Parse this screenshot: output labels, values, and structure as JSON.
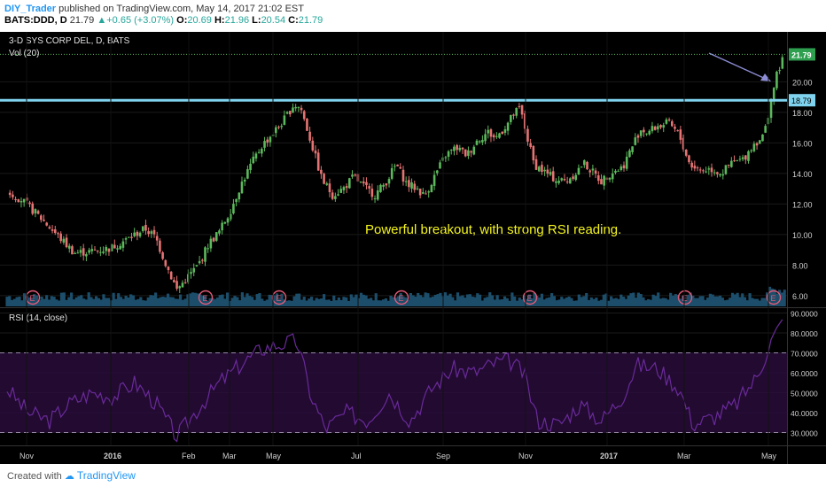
{
  "header": {
    "author": "DIY_Trader",
    "published_text": "published on TradingView.com, May 14, 2017 21:02 EST",
    "symbol": "BATS:DDD, D",
    "last": "21.79",
    "change": "+0.65 (+3.07%)",
    "open_label": "O:",
    "open": "20.69",
    "high_label": "H:",
    "high": "21.96",
    "low_label": "L:",
    "low": "20.54",
    "close_label": "C:",
    "close": "21.79"
  },
  "chart_data": [
    {
      "type": "candlestick",
      "title": "3-D SYS CORP DEL, D, BATS",
      "volume_label": "Vol (20)",
      "annotation": "Powerful breakout, with strong RSI reading.",
      "ylim": [
        5.3,
        22.8
      ],
      "y_ticks": [
        "6.00",
        "8.00",
        "10.00",
        "12.00",
        "14.00",
        "16.00",
        "18.00",
        "20.00"
      ],
      "horizontal_line": 18.79,
      "horizontal_line_label": "18.79",
      "last_price_label": "21.79",
      "x_ticks": [
        "Nov",
        "2016",
        "Feb",
        "Mar",
        "May",
        "Jul",
        "Sep",
        "Nov",
        "2017",
        "Mar",
        "May"
      ],
      "earnings_marker": "E",
      "earnings_count": 7,
      "price_path": [
        [
          0,
          12.8
        ],
        [
          4,
          12.3
        ],
        [
          9,
          11.2
        ],
        [
          14,
          10.0
        ],
        [
          19,
          8.8
        ],
        [
          24,
          8.9
        ],
        [
          29,
          9.1
        ],
        [
          34,
          9.7
        ],
        [
          39,
          10.4
        ],
        [
          42,
          9.8
        ],
        [
          45,
          8.0
        ],
        [
          48,
          6.4
        ],
        [
          51,
          7.2
        ],
        [
          54,
          8.0
        ],
        [
          57,
          9.4
        ],
        [
          60,
          10.2
        ],
        [
          63,
          11.5
        ],
        [
          66,
          13.2
        ],
        [
          69,
          14.6
        ],
        [
          72,
          15.8
        ],
        [
          75,
          16.6
        ],
        [
          78,
          17.4
        ],
        [
          81,
          18.5
        ],
        [
          83,
          18.3
        ],
        [
          86,
          16.0
        ],
        [
          89,
          13.6
        ],
        [
          92,
          12.6
        ],
        [
          95,
          13.0
        ],
        [
          98,
          13.8
        ],
        [
          101,
          13.1
        ],
        [
          104,
          12.6
        ],
        [
          107,
          13.4
        ],
        [
          110,
          14.6
        ],
        [
          113,
          13.3
        ],
        [
          116,
          13.0
        ],
        [
          118,
          12.5
        ],
        [
          121,
          13.9
        ],
        [
          124,
          15.2
        ],
        [
          127,
          15.7
        ],
        [
          130,
          15.2
        ],
        [
          133,
          16.2
        ],
        [
          136,
          16.7
        ],
        [
          138,
          16.3
        ],
        [
          141,
          17.1
        ],
        [
          143,
          17.8
        ],
        [
          145,
          18.3
        ],
        [
          147,
          16.4
        ],
        [
          149,
          14.6
        ],
        [
          152,
          14.1
        ],
        [
          155,
          13.6
        ],
        [
          158,
          13.5
        ],
        [
          161,
          14.1
        ],
        [
          163,
          14.7
        ],
        [
          165,
          14.2
        ],
        [
          168,
          13.5
        ],
        [
          171,
          14.1
        ],
        [
          174,
          14.4
        ],
        [
          177,
          15.9
        ],
        [
          179,
          16.9
        ],
        [
          181,
          16.7
        ],
        [
          184,
          17.1
        ],
        [
          187,
          17.3
        ],
        [
          190,
          16.5
        ],
        [
          193,
          14.6
        ],
        [
          196,
          14.2
        ],
        [
          199,
          14.3
        ],
        [
          202,
          14.0
        ],
        [
          205,
          14.7
        ],
        [
          208,
          14.9
        ],
        [
          211,
          15.9
        ],
        [
          214,
          16.5
        ],
        [
          216,
          18.8
        ],
        [
          218,
          20.8
        ],
        [
          220,
          21.8
        ]
      ],
      "volume_note": "overlaid volume histogram at bottom of price pane"
    },
    {
      "type": "line",
      "title": "RSI (14, close)",
      "ylim": [
        24,
        92
      ],
      "y_ticks": [
        "90.0000",
        "80.0000",
        "70.0000",
        "60.0000",
        "50.0000",
        "40.0000",
        "30.0000"
      ],
      "bands": [
        30,
        70
      ],
      "rsi_path": [
        [
          0,
          52
        ],
        [
          6,
          40
        ],
        [
          12,
          36
        ],
        [
          18,
          45
        ],
        [
          24,
          50
        ],
        [
          30,
          48
        ],
        [
          36,
          55
        ],
        [
          42,
          45
        ],
        [
          48,
          28
        ],
        [
          54,
          42
        ],
        [
          60,
          55
        ],
        [
          66,
          64
        ],
        [
          72,
          72
        ],
        [
          76,
          74
        ],
        [
          82,
          76
        ],
        [
          86,
          48
        ],
        [
          90,
          32
        ],
        [
          96,
          40
        ],
        [
          102,
          36
        ],
        [
          108,
          50
        ],
        [
          114,
          36
        ],
        [
          120,
          52
        ],
        [
          126,
          62
        ],
        [
          132,
          60
        ],
        [
          138,
          65
        ],
        [
          142,
          66
        ],
        [
          146,
          60
        ],
        [
          150,
          36
        ],
        [
          156,
          34
        ],
        [
          162,
          44
        ],
        [
          168,
          36
        ],
        [
          174,
          48
        ],
        [
          178,
          64
        ],
        [
          184,
          62
        ],
        [
          190,
          52
        ],
        [
          194,
          34
        ],
        [
          200,
          38
        ],
        [
          206,
          44
        ],
        [
          212,
          58
        ],
        [
          216,
          76
        ],
        [
          220,
          88
        ]
      ]
    }
  ],
  "footer": {
    "created_with": "Created with",
    "brand": "TradingView"
  },
  "colors": {
    "up": "#5cb85c",
    "down": "#e57373",
    "background": "#000000",
    "hline": "#7fd3ee",
    "rsi_line": "#6a2a9a",
    "rsi_fill": "#2a0c3d",
    "annotation": "#f5f51f",
    "volume": "#1c4e6b",
    "arrow": "#8c8cd4"
  }
}
